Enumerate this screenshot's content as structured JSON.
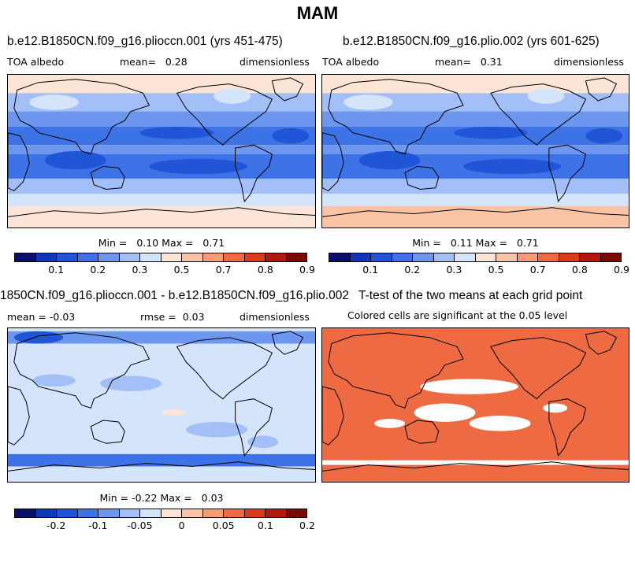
{
  "figure_title": "MAM",
  "panels": [
    {
      "title": "b.e12.B1850CN.f09_g16.plioccn.001 (yrs 451-475)",
      "left_label": "TOA albedo",
      "mean_label": "mean=",
      "mean_value": "0.28",
      "units": "dimensionless",
      "min_label": "Min =",
      "min_value": "0.10",
      "max_label": "Max =",
      "max_value": "0.71",
      "colorbar_ticks": [
        "0.1",
        "0.2",
        "0.3",
        "0.5",
        "0.7",
        "0.8",
        "0.9"
      ]
    },
    {
      "title": "b.e12.B1850CN.f09_g16.plio.002 (yrs 601-625)",
      "left_label": "TOA albedo",
      "mean_label": "mean=",
      "mean_value": "0.31",
      "units": "dimensionless",
      "min_label": "Min =",
      "min_value": "0.11",
      "max_label": "Max =",
      "max_value": "0.71",
      "colorbar_ticks": [
        "0.1",
        "0.2",
        "0.3",
        "0.5",
        "0.7",
        "0.8",
        "0.9"
      ]
    },
    {
      "title": "1850CN.f09_g16.plioccn.001 - b.e12.B1850CN.f09_g16.plio.002",
      "mean_label": "mean =",
      "mean_value": "-0.03",
      "rmse_label": "rmse =",
      "rmse_value": "0.03",
      "units": "dimensionless",
      "min_label": "Min =",
      "min_value": "-0.22",
      "max_label": "Max =",
      "max_value": "0.03",
      "colorbar_ticks": [
        "-0.2",
        "-0.1",
        "-0.05",
        "0",
        "0.05",
        "0.1",
        "0.2"
      ]
    },
    {
      "title": "T-test of the two means at each grid point",
      "subtitle": "Colored cells are significant at the 0.05 level"
    }
  ],
  "colors": {
    "albedo_scale": [
      "#08106b",
      "#0a3ab8",
      "#1f55d6",
      "#3d73e6",
      "#6d97ef",
      "#a3bff7",
      "#d4e4fb",
      "#fce4d6",
      "#fcc4a6",
      "#f79b74",
      "#ee6a43",
      "#dc3a1c",
      "#b3180c",
      "#7a0a05"
    ],
    "ocean_light": "#d4e4fb",
    "ttest_fill": "#ee6a43",
    "coast": "#000000"
  }
}
